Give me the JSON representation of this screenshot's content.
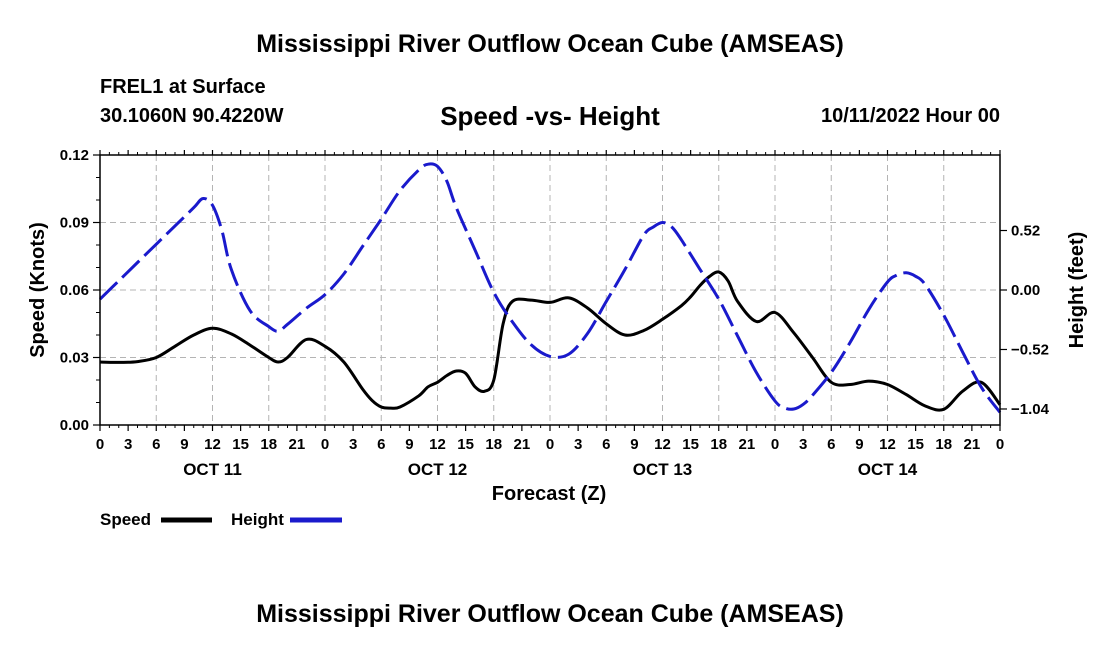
{
  "page": {
    "title": "Mississippi River Outflow Ocean Cube (AMSEAS)",
    "station": "FREL1 at Surface",
    "coords": "30.1060N  90.4220W",
    "subtitle": "Speed -vs- Height",
    "datetime": "10/11/2022 Hour 00",
    "footer_title": "Mississippi River Outflow Ocean Cube (AMSEAS)"
  },
  "chart_data": {
    "type": "line",
    "title": "Speed -vs- Height",
    "xlabel": "Forecast (Z)",
    "ylabel": "Speed (Knots)",
    "y2label": "Height (feet)",
    "x_range_hours": [
      0,
      96
    ],
    "x_ticks": [
      "0",
      "3",
      "6",
      "9",
      "12",
      "15",
      "18",
      "21",
      "0",
      "3",
      "6",
      "9",
      "12",
      "15",
      "18",
      "21",
      "0",
      "3",
      "6",
      "9",
      "12",
      "15",
      "18",
      "21",
      "0",
      "3",
      "6",
      "9",
      "12",
      "15",
      "18",
      "21",
      "0"
    ],
    "day_labels": [
      {
        "label": "OCT 11",
        "hour": 12
      },
      {
        "label": "OCT 12",
        "hour": 36
      },
      {
        "label": "OCT 13",
        "hour": 60
      },
      {
        "label": "OCT 14",
        "hour": 84
      }
    ],
    "ylim": [
      0,
      0.12
    ],
    "y_ticks": [
      "0.00",
      "0.03",
      "0.06",
      "0.09",
      "0.12"
    ],
    "y2lim": [
      -1.18,
      1.18
    ],
    "y2_ticks": [
      "-1.04",
      "-0.52",
      "0.00",
      "0.52"
    ],
    "grid": true,
    "legend": {
      "position": "bottom-left",
      "items": [
        {
          "name": "Speed",
          "color": "#000000"
        },
        {
          "name": "Height",
          "color": "#1a1acc"
        }
      ]
    },
    "series": [
      {
        "name": "Speed",
        "axis": "left",
        "color": "#000000",
        "style": "solid",
        "x": [
          0,
          2,
          4,
          6,
          8,
          10,
          12,
          14,
          16,
          18,
          19,
          20,
          22,
          24,
          26,
          28,
          29,
          30,
          31,
          32,
          34,
          35,
          36,
          37,
          38,
          39,
          40,
          41,
          42,
          43,
          44,
          46,
          48,
          50,
          52,
          54,
          56,
          58,
          60,
          62,
          63,
          64,
          65,
          66,
          67,
          68,
          70,
          72,
          74,
          76,
          78,
          80,
          82,
          84,
          86,
          88,
          90,
          92,
          94,
          96
        ],
        "values": [
          0.028,
          0.0278,
          0.0282,
          0.03,
          0.035,
          0.04,
          0.043,
          0.0405,
          0.0355,
          0.03,
          0.028,
          0.03,
          0.038,
          0.035,
          0.028,
          0.016,
          0.011,
          0.008,
          0.0075,
          0.008,
          0.013,
          0.017,
          0.019,
          0.022,
          0.024,
          0.023,
          0.017,
          0.015,
          0.02,
          0.045,
          0.055,
          0.0555,
          0.0545,
          0.0565,
          0.052,
          0.045,
          0.04,
          0.042,
          0.047,
          0.053,
          0.057,
          0.062,
          0.066,
          0.068,
          0.064,
          0.055,
          0.046,
          0.05,
          0.041,
          0.03,
          0.019,
          0.018,
          0.0195,
          0.018,
          0.0135,
          0.0085,
          0.007,
          0.015,
          0.019,
          0.009
        ]
      },
      {
        "name": "Height",
        "axis": "right",
        "color": "#1a1acc",
        "style": "dashed",
        "x": [
          0,
          2,
          4,
          6,
          8,
          10,
          11,
          12,
          13,
          14,
          16,
          18,
          19,
          20,
          22,
          24,
          26,
          28,
          30,
          32,
          34,
          35,
          36,
          37,
          38,
          40,
          42,
          44,
          46,
          48,
          50,
          52,
          54,
          56,
          58,
          59,
          60,
          61,
          62,
          64,
          66,
          68,
          70,
          72,
          73,
          74,
          75,
          76,
          78,
          80,
          82,
          84,
          85,
          86,
          87,
          88,
          90,
          92,
          94,
          96
        ],
        "values": [
          -0.08,
          0.08,
          0.24,
          0.4,
          0.56,
          0.72,
          0.8,
          0.74,
          0.52,
          0.18,
          -0.18,
          -0.32,
          -0.36,
          -0.3,
          -0.16,
          -0.04,
          0.14,
          0.38,
          0.62,
          0.87,
          1.05,
          1.1,
          1.08,
          0.95,
          0.72,
          0.35,
          -0.02,
          -0.28,
          -0.48,
          -0.58,
          -0.56,
          -0.38,
          -0.1,
          0.18,
          0.48,
          0.55,
          0.59,
          0.55,
          0.44,
          0.18,
          -0.08,
          -0.4,
          -0.72,
          -0.97,
          -1.03,
          -1.04,
          -1.0,
          -0.92,
          -0.72,
          -0.46,
          -0.17,
          0.07,
          0.13,
          0.15,
          0.12,
          0.05,
          -0.22,
          -0.54,
          -0.85,
          -1.07
        ]
      }
    ]
  }
}
